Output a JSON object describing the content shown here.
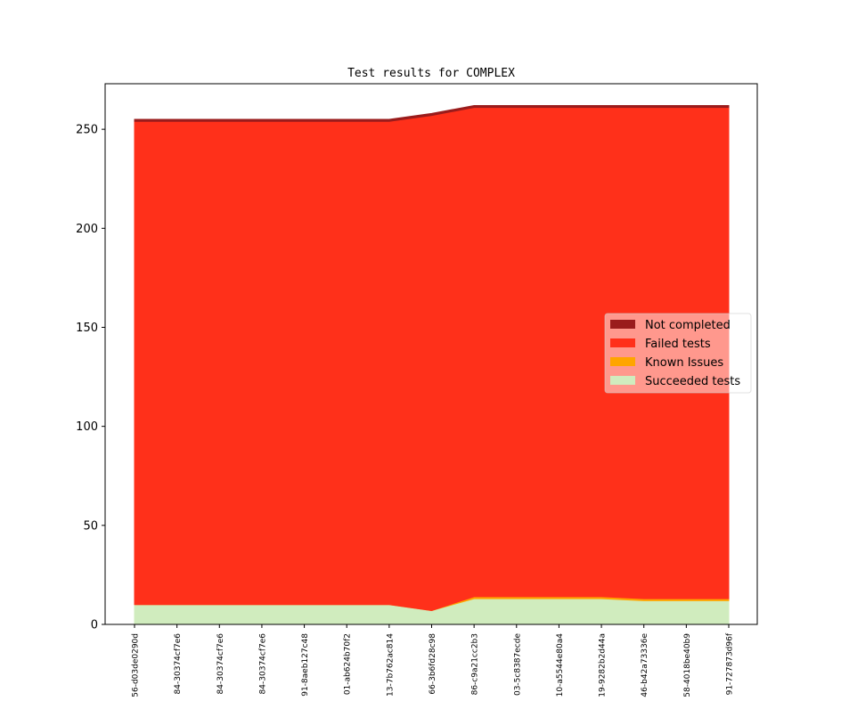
{
  "chart_data": {
    "type": "area",
    "stacked": true,
    "title": "Test results for COMPLEX",
    "xlabel": "",
    "ylabel": "",
    "ylim": [
      0,
      273
    ],
    "yticks": [
      0,
      50,
      100,
      150,
      200,
      250
    ],
    "legend_position": "center-right",
    "grid": false,
    "categories": [
      "56-d03de0290d",
      "84-30374cf7e6",
      "84-30374cf7e6",
      "84-30374cf7e6",
      "91-8aeb127c48",
      "01-ab624b70f2",
      "13-7b762ac814",
      "66-3b6fd28c98",
      "86-c9a21cc2b3",
      "03-5c8387ecde",
      "10-a5544e80a4",
      "19-9282b2d44a",
      "46-b42a73336e",
      "58-4018be40b9",
      "91-727873d96f"
    ],
    "series": [
      {
        "name": "Succeeded tests",
        "color": "#d0ecbe",
        "values": [
          10,
          10,
          10,
          10,
          10,
          10,
          10,
          7,
          13,
          13,
          13,
          13,
          12,
          12,
          12
        ]
      },
      {
        "name": "Known Issues",
        "color": "#ffa500",
        "values": [
          0,
          0,
          0,
          0,
          0,
          0,
          0,
          0,
          1,
          1,
          1,
          1,
          1,
          1,
          1
        ]
      },
      {
        "name": "Failed tests",
        "color": "#ff301a",
        "values": [
          244,
          244,
          244,
          244,
          244,
          244,
          244,
          250,
          247,
          247,
          247,
          247,
          248,
          248,
          248
        ]
      },
      {
        "name": "Not completed",
        "color": "#9a1c1c",
        "values": [
          1,
          1,
          1,
          1,
          1,
          1,
          1,
          1,
          1,
          1,
          1,
          1,
          1,
          1,
          1
        ]
      }
    ],
    "legend_order": [
      "Not completed",
      "Failed tests",
      "Known Issues",
      "Succeeded tests"
    ]
  }
}
